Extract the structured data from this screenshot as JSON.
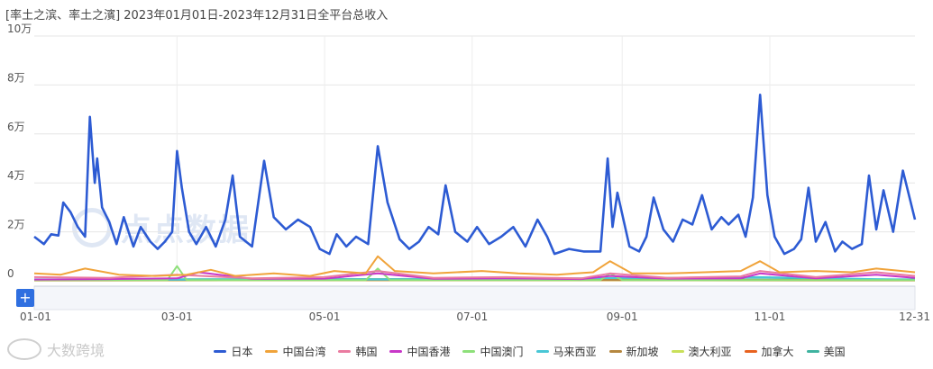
{
  "title": "[率土之滨、率土之濱]   2023年01月01日-2023年12月31日全平台总收入",
  "watermark_center": "点点数据",
  "watermark_bottom": "大数跨境",
  "zoom_button": "+",
  "colors": {
    "日本": "#2d5bd3",
    "中国台湾": "#f0a33a",
    "韩国": "#ea7ba0",
    "中国香港": "#c837c8",
    "中国澳门": "#8ee07a",
    "马来西亚": "#49c7d6",
    "新加坡": "#b5873f",
    "澳大利亚": "#c9e05a",
    "加拿大": "#e8621f",
    "美国": "#3fb3a0"
  },
  "chart_data": {
    "type": "line",
    "ylim": [
      0,
      100000
    ],
    "y_ticks": [
      0,
      20000,
      40000,
      60000,
      80000,
      100000
    ],
    "y_tick_labels": [
      "0",
      "2万",
      "4万",
      "6万",
      "8万",
      "10万"
    ],
    "x_ticks": [
      "2023-01-01",
      "2023-03-01",
      "2023-05-01",
      "2023-07-01",
      "2023-09-01",
      "2023-11-01",
      "2023-12-31"
    ],
    "x_tick_labels": [
      "01-01",
      "03-01",
      "05-01",
      "07-01",
      "09-01",
      "11-01",
      "12-31"
    ],
    "grid": true,
    "legend_position": "bottom",
    "series": [
      {
        "name": "日本",
        "points": [
          [
            "2023-01-01",
            18000
          ],
          [
            "2023-01-05",
            15000
          ],
          [
            "2023-01-08",
            19000
          ],
          [
            "2023-01-11",
            18500
          ],
          [
            "2023-01-13",
            32000
          ],
          [
            "2023-01-16",
            28000
          ],
          [
            "2023-01-19",
            22000
          ],
          [
            "2023-01-22",
            18000
          ],
          [
            "2023-01-24",
            67000
          ],
          [
            "2023-01-26",
            40000
          ],
          [
            "2023-01-27",
            50000
          ],
          [
            "2023-01-29",
            30000
          ],
          [
            "2023-02-01",
            24000
          ],
          [
            "2023-02-04",
            15000
          ],
          [
            "2023-02-07",
            26000
          ],
          [
            "2023-02-11",
            14000
          ],
          [
            "2023-02-14",
            22000
          ],
          [
            "2023-02-18",
            16000
          ],
          [
            "2023-02-21",
            13000
          ],
          [
            "2023-02-24",
            16000
          ],
          [
            "2023-02-27",
            20000
          ],
          [
            "2023-03-01",
            53000
          ],
          [
            "2023-03-03",
            38000
          ],
          [
            "2023-03-06",
            20000
          ],
          [
            "2023-03-09",
            15000
          ],
          [
            "2023-03-13",
            22000
          ],
          [
            "2023-03-17",
            14000
          ],
          [
            "2023-03-21",
            25000
          ],
          [
            "2023-03-24",
            43000
          ],
          [
            "2023-03-27",
            18000
          ],
          [
            "2023-04-01",
            14000
          ],
          [
            "2023-04-06",
            49000
          ],
          [
            "2023-04-10",
            26000
          ],
          [
            "2023-04-15",
            21000
          ],
          [
            "2023-04-20",
            25000
          ],
          [
            "2023-04-25",
            22000
          ],
          [
            "2023-04-29",
            13000
          ],
          [
            "2023-05-03",
            11000
          ],
          [
            "2023-05-06",
            19000
          ],
          [
            "2023-05-10",
            14000
          ],
          [
            "2023-05-14",
            18000
          ],
          [
            "2023-05-19",
            15000
          ],
          [
            "2023-05-23",
            55000
          ],
          [
            "2023-05-27",
            32000
          ],
          [
            "2023-06-01",
            17000
          ],
          [
            "2023-06-05",
            13000
          ],
          [
            "2023-06-09",
            16000
          ],
          [
            "2023-06-13",
            22000
          ],
          [
            "2023-06-17",
            19000
          ],
          [
            "2023-06-20",
            39000
          ],
          [
            "2023-06-24",
            20000
          ],
          [
            "2023-06-29",
            16000
          ],
          [
            "2023-07-03",
            22000
          ],
          [
            "2023-07-08",
            15000
          ],
          [
            "2023-07-13",
            18000
          ],
          [
            "2023-07-18",
            22000
          ],
          [
            "2023-07-23",
            14000
          ],
          [
            "2023-07-28",
            25000
          ],
          [
            "2023-08-01",
            18000
          ],
          [
            "2023-08-04",
            11000
          ],
          [
            "2023-08-10",
            13000
          ],
          [
            "2023-08-16",
            12000
          ],
          [
            "2023-08-23",
            12000
          ],
          [
            "2023-08-26",
            50000
          ],
          [
            "2023-08-28",
            22000
          ],
          [
            "2023-08-30",
            36000
          ],
          [
            "2023-09-04",
            14000
          ],
          [
            "2023-09-08",
            12000
          ],
          [
            "2023-09-11",
            18000
          ],
          [
            "2023-09-14",
            34000
          ],
          [
            "2023-09-18",
            21000
          ],
          [
            "2023-09-22",
            16000
          ],
          [
            "2023-09-26",
            25000
          ],
          [
            "2023-09-30",
            23000
          ],
          [
            "2023-10-04",
            35000
          ],
          [
            "2023-10-08",
            21000
          ],
          [
            "2023-10-12",
            26000
          ],
          [
            "2023-10-15",
            23000
          ],
          [
            "2023-10-19",
            27000
          ],
          [
            "2023-10-22",
            18000
          ],
          [
            "2023-10-25",
            34000
          ],
          [
            "2023-10-28",
            76000
          ],
          [
            "2023-10-31",
            35000
          ],
          [
            "2023-11-03",
            18000
          ],
          [
            "2023-11-07",
            11000
          ],
          [
            "2023-11-11",
            13000
          ],
          [
            "2023-11-14",
            17000
          ],
          [
            "2023-11-17",
            38000
          ],
          [
            "2023-11-20",
            16000
          ],
          [
            "2023-11-24",
            24000
          ],
          [
            "2023-11-28",
            12000
          ],
          [
            "2023-12-01",
            16000
          ],
          [
            "2023-12-05",
            13000
          ],
          [
            "2023-12-09",
            15000
          ],
          [
            "2023-12-12",
            43000
          ],
          [
            "2023-12-15",
            21000
          ],
          [
            "2023-12-18",
            37000
          ],
          [
            "2023-12-22",
            20000
          ],
          [
            "2023-12-26",
            45000
          ],
          [
            "2023-12-31",
            25000
          ]
        ]
      },
      {
        "name": "中国台湾",
        "points": [
          [
            "2023-01-01",
            3000
          ],
          [
            "2023-01-12",
            2500
          ],
          [
            "2023-01-22",
            5000
          ],
          [
            "2023-02-05",
            2500
          ],
          [
            "2023-02-20",
            2000
          ],
          [
            "2023-03-05",
            2500
          ],
          [
            "2023-03-15",
            4500
          ],
          [
            "2023-03-25",
            2000
          ],
          [
            "2023-04-10",
            3000
          ],
          [
            "2023-04-25",
            2000
          ],
          [
            "2023-05-05",
            4000
          ],
          [
            "2023-05-18",
            3000
          ],
          [
            "2023-05-23",
            10000
          ],
          [
            "2023-05-30",
            4000
          ],
          [
            "2023-06-15",
            3000
          ],
          [
            "2023-07-05",
            4000
          ],
          [
            "2023-07-20",
            3000
          ],
          [
            "2023-08-05",
            2500
          ],
          [
            "2023-08-20",
            3500
          ],
          [
            "2023-08-27",
            8000
          ],
          [
            "2023-09-05",
            3000
          ],
          [
            "2023-09-20",
            3000
          ],
          [
            "2023-10-05",
            3500
          ],
          [
            "2023-10-20",
            4000
          ],
          [
            "2023-10-28",
            8000
          ],
          [
            "2023-11-05",
            3500
          ],
          [
            "2023-11-20",
            4000
          ],
          [
            "2023-12-05",
            3500
          ],
          [
            "2023-12-15",
            5000
          ],
          [
            "2023-12-31",
            3500
          ]
        ]
      },
      {
        "name": "韩国",
        "points": [
          [
            "2023-01-01",
            1500
          ],
          [
            "2023-02-01",
            1200
          ],
          [
            "2023-03-01",
            2500
          ],
          [
            "2023-04-01",
            1000
          ],
          [
            "2023-05-01",
            1500
          ],
          [
            "2023-05-23",
            4000
          ],
          [
            "2023-06-15",
            1200
          ],
          [
            "2023-07-15",
            1500
          ],
          [
            "2023-08-15",
            1000
          ],
          [
            "2023-08-27",
            3000
          ],
          [
            "2023-09-20",
            1200
          ],
          [
            "2023-10-20",
            1800
          ],
          [
            "2023-10-28",
            4000
          ],
          [
            "2023-11-20",
            1500
          ],
          [
            "2023-12-15",
            3500
          ],
          [
            "2023-12-31",
            2000
          ]
        ]
      },
      {
        "name": "中国香港",
        "points": [
          [
            "2023-01-01",
            500
          ],
          [
            "2023-02-01",
            700
          ],
          [
            "2023-03-01",
            1000
          ],
          [
            "2023-03-10",
            3500
          ],
          [
            "2023-04-01",
            800
          ],
          [
            "2023-05-01",
            900
          ],
          [
            "2023-05-23",
            3000
          ],
          [
            "2023-06-15",
            800
          ],
          [
            "2023-07-15",
            1000
          ],
          [
            "2023-08-15",
            700
          ],
          [
            "2023-08-27",
            2000
          ],
          [
            "2023-09-20",
            900
          ],
          [
            "2023-10-20",
            1000
          ],
          [
            "2023-10-28",
            3000
          ],
          [
            "2023-11-20",
            1000
          ],
          [
            "2023-12-15",
            2500
          ],
          [
            "2023-12-31",
            1200
          ]
        ]
      },
      {
        "name": "中国澳门",
        "points": [
          [
            "2023-01-01",
            300
          ],
          [
            "2023-02-25",
            300
          ],
          [
            "2023-03-01",
            6000
          ],
          [
            "2023-03-05",
            300
          ],
          [
            "2023-05-18",
            300
          ],
          [
            "2023-05-23",
            5000
          ],
          [
            "2023-05-28",
            300
          ],
          [
            "2023-08-23",
            300
          ],
          [
            "2023-08-27",
            3000
          ],
          [
            "2023-09-01",
            300
          ],
          [
            "2023-12-31",
            300
          ]
        ]
      },
      {
        "name": "马来西亚",
        "points": [
          [
            "2023-01-01",
            400
          ],
          [
            "2023-06-01",
            500
          ],
          [
            "2023-10-28",
            1500
          ],
          [
            "2023-12-31",
            400
          ]
        ]
      },
      {
        "name": "新加坡",
        "points": [
          [
            "2023-01-01",
            300
          ],
          [
            "2023-06-01",
            400
          ],
          [
            "2023-12-31",
            300
          ]
        ]
      },
      {
        "name": "澳大利亚",
        "points": [
          [
            "2023-01-01",
            200
          ],
          [
            "2023-06-01",
            300
          ],
          [
            "2023-12-31",
            200
          ]
        ]
      },
      {
        "name": "加拿大",
        "points": [
          [
            "2023-01-01",
            150
          ],
          [
            "2023-06-01",
            200
          ],
          [
            "2023-12-31",
            150
          ]
        ]
      },
      {
        "name": "美国",
        "points": [
          [
            "2023-01-01",
            600
          ],
          [
            "2023-06-01",
            700
          ],
          [
            "2023-12-31",
            600
          ]
        ]
      }
    ]
  }
}
